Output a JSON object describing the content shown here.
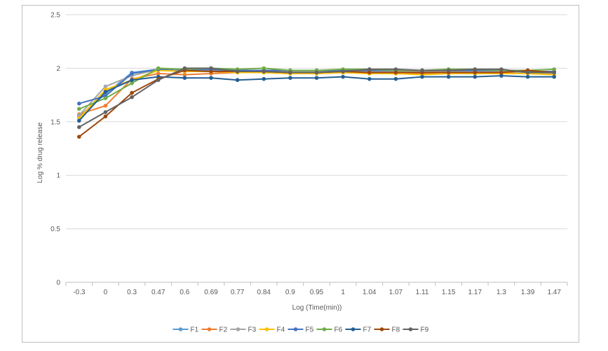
{
  "chart_data": {
    "type": "line",
    "xlabel": "Log (Time(min))",
    "ylabel": "Log % drug release",
    "categories": [
      "-0.3",
      "0",
      "0.3",
      "0.47",
      "0.6",
      "0.69",
      "0.77",
      "0.84",
      "0.9",
      "0.95",
      "1",
      "1.04",
      "1.07",
      "1.11",
      "1.15",
      "1.17",
      "1.3",
      "1.39",
      "1.47"
    ],
    "ylim": [
      0,
      2.5
    ],
    "yticks": [
      "0",
      "0.5",
      "1",
      "1.5",
      "2",
      "2.5"
    ],
    "grid": "horizontal",
    "legend_position": "bottom",
    "series": [
      {
        "name": "F1",
        "color": "#5b9bd5",
        "values": [
          1.55,
          1.76,
          1.96,
          1.99,
          1.98,
          1.98,
          1.98,
          1.98,
          1.97,
          1.97,
          1.97,
          1.97,
          1.97,
          1.97,
          1.97,
          1.97,
          1.97,
          1.96,
          1.96
        ]
      },
      {
        "name": "F2",
        "color": "#ed7d31",
        "values": [
          1.57,
          1.65,
          1.9,
          1.95,
          1.94,
          1.95,
          1.96,
          1.96,
          1.95,
          1.95,
          1.96,
          1.95,
          1.95,
          1.95,
          1.95,
          1.95,
          1.95,
          1.96,
          1.96
        ]
      },
      {
        "name": "F3",
        "color": "#a5a5a5",
        "values": [
          1.56,
          1.83,
          1.93,
          1.99,
          1.99,
          1.99,
          1.98,
          1.98,
          1.97,
          1.97,
          1.97,
          1.97,
          1.97,
          1.97,
          1.97,
          1.97,
          1.97,
          1.96,
          1.95
        ]
      },
      {
        "name": "F4",
        "color": "#ffc000",
        "values": [
          1.53,
          1.8,
          1.89,
          1.98,
          1.97,
          1.97,
          1.96,
          1.96,
          1.95,
          1.95,
          1.96,
          1.95,
          1.95,
          1.94,
          1.95,
          1.95,
          1.95,
          1.95,
          1.94
        ]
      },
      {
        "name": "F5",
        "color": "#4472c4",
        "values": [
          1.67,
          1.74,
          1.95,
          1.99,
          1.99,
          1.99,
          1.98,
          1.98,
          1.98,
          1.98,
          1.98,
          1.98,
          1.98,
          1.98,
          1.98,
          1.98,
          1.98,
          1.97,
          1.97
        ]
      },
      {
        "name": "F6",
        "color": "#70ad47",
        "values": [
          1.62,
          1.72,
          1.86,
          2.0,
          1.99,
          2.0,
          1.99,
          2.0,
          1.98,
          1.98,
          1.99,
          1.99,
          1.98,
          1.98,
          1.99,
          1.99,
          1.98,
          1.98,
          1.99
        ]
      },
      {
        "name": "F7",
        "color": "#255e91",
        "values": [
          1.51,
          1.78,
          1.89,
          1.92,
          1.91,
          1.91,
          1.89,
          1.9,
          1.91,
          1.91,
          1.92,
          1.9,
          1.9,
          1.92,
          1.92,
          1.92,
          1.93,
          1.92,
          1.92
        ]
      },
      {
        "name": "F8",
        "color": "#9e480e",
        "values": [
          1.36,
          1.55,
          1.77,
          1.9,
          1.98,
          1.97,
          1.97,
          1.97,
          1.96,
          1.96,
          1.97,
          1.96,
          1.96,
          1.96,
          1.96,
          1.96,
          1.96,
          1.98,
          1.96
        ]
      },
      {
        "name": "F9",
        "color": "#636363",
        "values": [
          1.45,
          1.59,
          1.73,
          1.89,
          2.0,
          2.0,
          1.97,
          1.97,
          1.96,
          1.96,
          1.97,
          1.99,
          1.99,
          1.98,
          1.98,
          1.99,
          1.99,
          1.96,
          1.96
        ]
      }
    ]
  }
}
